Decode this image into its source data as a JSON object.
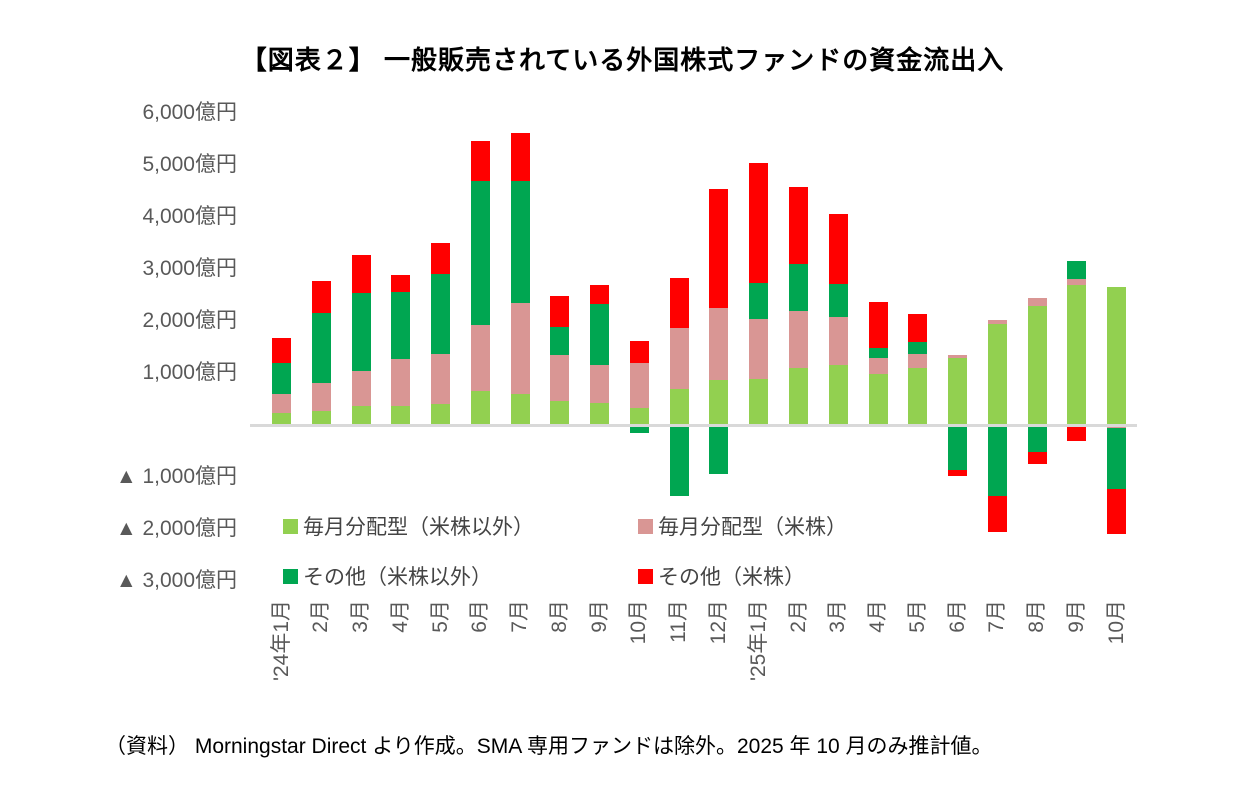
{
  "title": "【図表２】 一般販売されている外国株式ファンドの資金流出入",
  "source_note": "（資料） Morningstar Direct より作成。SMA 専用ファンドは除外。2025 年 10 月のみ推計値。",
  "chart_data": {
    "type": "bar",
    "stacked": true,
    "unit": "億円",
    "title": "【図表２】 一般販売されている外国株式ファンドの資金流出入",
    "grid": false,
    "legend_position": "inside-bottom",
    "ylim": [
      -3000,
      6000
    ],
    "y_ticks": [
      {
        "value": 6000,
        "label": "6,000億円"
      },
      {
        "value": 5000,
        "label": "5,000億円"
      },
      {
        "value": 4000,
        "label": "4,000億円"
      },
      {
        "value": 3000,
        "label": "3,000億円"
      },
      {
        "value": 2000,
        "label": "2,000億円"
      },
      {
        "value": 1000,
        "label": "1,000億円"
      },
      {
        "value": -1000,
        "label": "▲ 1,000億円"
      },
      {
        "value": -2000,
        "label": "▲ 2,000億円"
      },
      {
        "value": -3000,
        "label": "▲ 3,000億円"
      }
    ],
    "categories": [
      "'24年1月",
      "2月",
      "3月",
      "4月",
      "5月",
      "6月",
      "7月",
      "8月",
      "9月",
      "10月",
      "11月",
      "12月",
      "'25年1月",
      "2月",
      "3月",
      "4月",
      "5月",
      "6月",
      "7月",
      "8月",
      "9月",
      "10月"
    ],
    "series": [
      {
        "name": "毎月分配型（米株以外）",
        "color": "#92d050",
        "values": [
          230,
          270,
          370,
          370,
          400,
          660,
          590,
          470,
          430,
          330,
          700,
          870,
          880,
          1100,
          1150,
          990,
          1090,
          1280,
          1950,
          2290,
          2700,
          2660
        ]
      },
      {
        "name": "毎月分配型（米株）",
        "color": "#d99694",
        "values": [
          370,
          530,
          670,
          890,
          960,
          1270,
          1760,
          870,
          720,
          860,
          1160,
          1380,
          1150,
          1090,
          930,
          290,
          280,
          60,
          70,
          150,
          100,
          -60
        ]
      },
      {
        "name": "その他（米株以外）",
        "color": "#00a651",
        "values": [
          600,
          1360,
          1500,
          1300,
          1540,
          2760,
          2350,
          540,
          1180,
          -160,
          -1370,
          -950,
          700,
          900,
          640,
          210,
          230,
          -870,
          -1370,
          -510,
          350,
          -1170
        ]
      },
      {
        "name": "その他（米株）",
        "color": "#ff0000",
        "values": [
          470,
          610,
          730,
          320,
          600,
          780,
          910,
          600,
          370,
          430,
          970,
          2290,
          2300,
          1490,
          1330,
          870,
          530,
          -110,
          -690,
          -240,
          -300,
          -870
        ]
      }
    ]
  }
}
